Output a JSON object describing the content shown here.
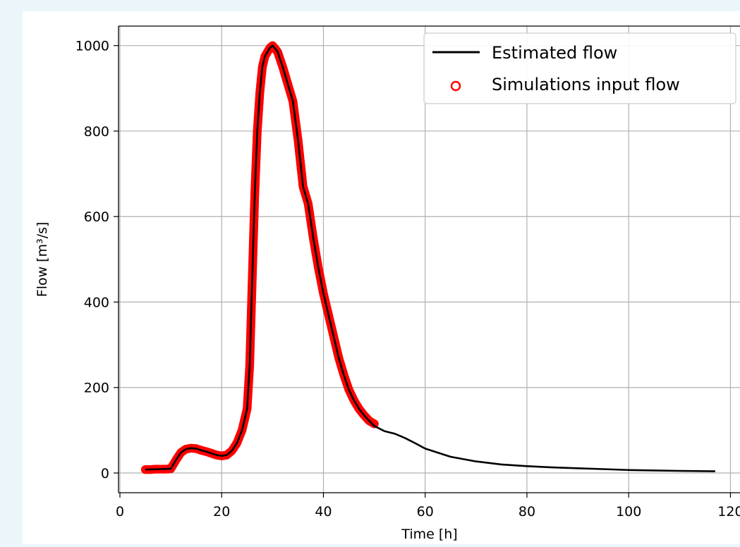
{
  "chart_data": {
    "type": "line",
    "title": "",
    "xlabel": "Time [h]",
    "ylabel": "Flow [m³/s]",
    "xlim": [
      -0.5,
      124
    ],
    "ylim": [
      -45,
      1048
    ],
    "x_ticks": [
      0,
      20,
      40,
      60,
      80,
      100,
      120
    ],
    "x_tick_labels": [
      "0",
      "20",
      "40",
      "60",
      "80",
      "100",
      "120"
    ],
    "y_ticks": [
      0,
      200,
      400,
      600,
      800,
      1000
    ],
    "y_tick_labels": [
      "0",
      "200",
      "400",
      "600",
      "800",
      "1000"
    ],
    "grid": true,
    "legend_position": "top-right",
    "series": [
      {
        "name": "Estimated flow",
        "kind": "line",
        "color": "#000000",
        "x": [
          5,
          8,
          10,
          11,
          12,
          13,
          14,
          15,
          16,
          17,
          18,
          19,
          20,
          21,
          22,
          23,
          24,
          25,
          25.5,
          26,
          26.5,
          27,
          27.5,
          28,
          28.5,
          29,
          29.5,
          30,
          30.5,
          31,
          32,
          33,
          34,
          35,
          36,
          37,
          38,
          39,
          40,
          41,
          42,
          43,
          44,
          45,
          46,
          47,
          48,
          49,
          50,
          52,
          54,
          56,
          58,
          60,
          65,
          70,
          75,
          80,
          85,
          90,
          95,
          100,
          105,
          110,
          117
        ],
        "y": [
          8,
          9,
          10,
          30,
          48,
          56,
          58,
          57,
          53,
          50,
          46,
          42,
          40,
          42,
          52,
          70,
          100,
          150,
          250,
          450,
          650,
          800,
          890,
          950,
          975,
          985,
          995,
          1000,
          993,
          985,
          950,
          910,
          870,
          780,
          670,
          630,
          550,
          480,
          420,
          370,
          320,
          270,
          230,
          195,
          170,
          150,
          135,
          122,
          110,
          98,
          92,
          82,
          70,
          57,
          38,
          27,
          20,
          16,
          13,
          11,
          9,
          7,
          6,
          5,
          4
        ]
      },
      {
        "name": "Simulations input flow",
        "kind": "scatter",
        "marker": "open-circle",
        "color": "#ff0000",
        "x": [
          5,
          6,
          7,
          8,
          9,
          10,
          11,
          12,
          13,
          14,
          15,
          16,
          17,
          18,
          19,
          20,
          21,
          22,
          23,
          24,
          25,
          25.5,
          26,
          26.5,
          27,
          27.5,
          28,
          28.5,
          29,
          29.5,
          30,
          30.5,
          31,
          32,
          33,
          34,
          35,
          36,
          37,
          38,
          39,
          40,
          41,
          42,
          43,
          44,
          45,
          46,
          47,
          48,
          49,
          50
        ],
        "y": [
          8,
          8,
          9,
          9,
          9,
          10,
          30,
          48,
          56,
          58,
          57,
          53,
          50,
          46,
          42,
          40,
          42,
          52,
          70,
          100,
          150,
          250,
          450,
          650,
          800,
          890,
          950,
          975,
          985,
          995,
          1000,
          993,
          985,
          950,
          910,
          870,
          780,
          670,
          630,
          550,
          480,
          420,
          370,
          320,
          270,
          230,
          195,
          170,
          150,
          135,
          122,
          115
        ]
      }
    ]
  }
}
